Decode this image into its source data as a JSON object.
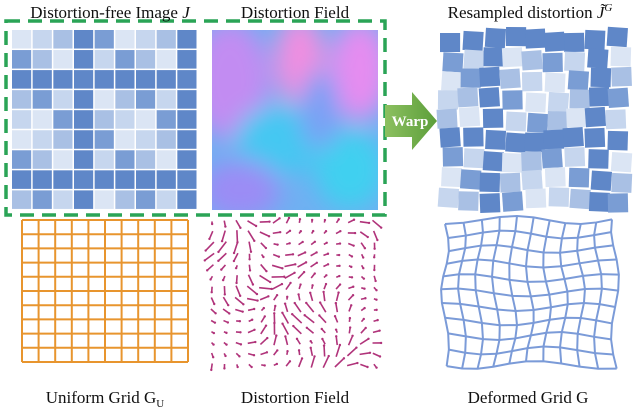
{
  "top_labels": {
    "image": {
      "text": "Distortion-free Image ",
      "symbol": "J"
    },
    "field": "Distortion Field",
    "resampled": {
      "text": "Resampled distortion ",
      "symbol": "J̃",
      "superscript": "G"
    }
  },
  "arrow_label": "Warp",
  "bottom_labels": {
    "uniform": {
      "text": "Uniform Grid ",
      "symbol": "G",
      "subscript": "U"
    },
    "field": "Distortion Field",
    "deformed": "Deformed Grid G"
  }
}
